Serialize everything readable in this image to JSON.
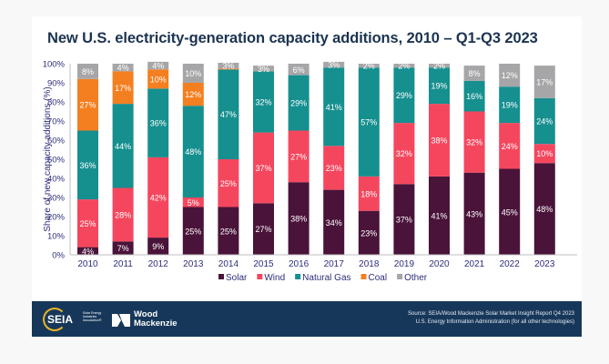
{
  "chart_data": {
    "type": "bar",
    "stacked": true,
    "title": "New U.S. electricity-generation capacity additions, 2010 – Q1-Q3 2023",
    "xlabel": "",
    "ylabel": "Share of new capacity additions (%)",
    "ylim": [
      0,
      100
    ],
    "yticks": [
      "0%",
      "10%",
      "20%",
      "30%",
      "40%",
      "50%",
      "60%",
      "70%",
      "80%",
      "90%",
      "100%"
    ],
    "grid": false,
    "legend_position": "bottom-center",
    "categories": [
      "2010",
      "2011",
      "2012",
      "2013",
      "2014",
      "2015",
      "2016",
      "2017",
      "2018",
      "2019",
      "2020",
      "2021",
      "2022",
      "2023"
    ],
    "series": [
      {
        "name": "Solar",
        "color": "#4a1339",
        "values": [
          4,
          7,
          9,
          25,
          25,
          27,
          38,
          34,
          23,
          37,
          41,
          43,
          45,
          48
        ]
      },
      {
        "name": "Wind",
        "color": "#f4475e",
        "values": [
          25,
          28,
          42,
          5,
          25,
          37,
          27,
          23,
          18,
          32,
          38,
          32,
          24,
          10
        ]
      },
      {
        "name": "Natural Gas",
        "color": "#168f8f",
        "values": [
          36,
          44,
          36,
          48,
          47,
          32,
          29,
          41,
          57,
          29,
          19,
          16,
          19,
          24
        ]
      },
      {
        "name": "Coal",
        "color": "#f47f20",
        "values": [
          27,
          17,
          10,
          12,
          0.5,
          0,
          0,
          0,
          0,
          0,
          0,
          0,
          0,
          0
        ]
      },
      {
        "name": "Other",
        "color": "#a6a6a8",
        "values": [
          8,
          4,
          4,
          10,
          3,
          3,
          6,
          3,
          2,
          2,
          2,
          8,
          12,
          17
        ]
      }
    ],
    "labels": {
      "Solar": [
        "4%",
        "7%",
        "9%",
        "25%",
        "25%",
        "27%",
        "38%",
        "34%",
        "23%",
        "37%",
        "41%",
        "43%",
        "45%",
        "48%"
      ],
      "Wind": [
        "25%",
        "28%",
        "42%",
        "5%",
        "25%",
        "37%",
        "27%",
        "23%",
        "18%",
        "32%",
        "38%",
        "32%",
        "24%",
        "10%"
      ],
      "Natural Gas": [
        "36%",
        "44%",
        "36%",
        "48%",
        "47%",
        "32%",
        "29%",
        "41%",
        "57%",
        "29%",
        "19%",
        "16%",
        "19%",
        "24%"
      ],
      "Coal": [
        "27%",
        "17%",
        "10%",
        "12%",
        "",
        "",
        "",
        "",
        "",
        "",
        "",
        "",
        "",
        ""
      ],
      "Other": [
        "8%",
        "4%",
        "4%",
        "10%",
        "3%",
        "3%",
        "6%",
        "3%",
        "2%",
        "2%",
        "2%",
        "8%",
        "12%",
        "17%"
      ]
    }
  },
  "footer": {
    "seia_logo_text": "SEIA",
    "seia_sub": "Solar Energy Industries Association®",
    "wm_logo_line1": "Wood",
    "wm_logo_line2": "Mackenzie",
    "source_line1": "Source: SEIA/Wood Mackenzie Solar Market Insight Report Q4 2023",
    "source_line2": "U.S. Energy Information Administration (for all other technologies)"
  }
}
